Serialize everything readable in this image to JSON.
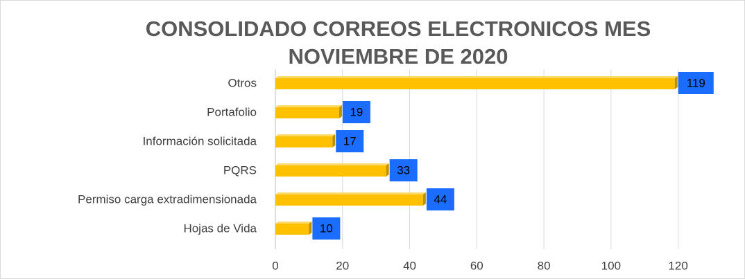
{
  "chart_data": {
    "type": "bar",
    "orientation": "horizontal",
    "title": [
      "CONSOLIDADO CORREOS ELECTRONICOS MES",
      "NOVIEMBRE DE  2020"
    ],
    "categories": [
      "Otros",
      "Portafolio",
      "Información solicitada",
      "PQRS",
      "Permiso carga extradimensionada",
      "Hojas de Vida"
    ],
    "values": [
      119,
      19,
      17,
      33,
      44,
      10
    ],
    "color": "#ffc000",
    "label_color": "#1a6dff",
    "xlim": [
      0,
      130
    ],
    "xticks": [
      0,
      20,
      40,
      60,
      80,
      100,
      120
    ],
    "grid": true
  }
}
